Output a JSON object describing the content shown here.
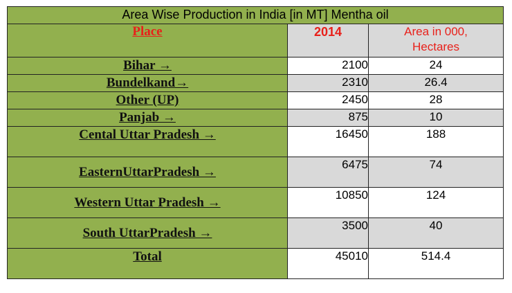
{
  "table": {
    "title": "Area Wise Production in India [in MT] Mentha oil",
    "headers": {
      "place": "Place",
      "year": "2014",
      "area_line1": "Area in 000,",
      "area_line2": "Hectares"
    },
    "rows": [
      {
        "place": "Bihar →",
        "production": "2100",
        "area": "24"
      },
      {
        "place": "Bundelkand→",
        "production": "2310",
        "area": "26.4"
      },
      {
        "place": "Other (UP)",
        "production": "2450",
        "area": "28"
      },
      {
        "place": "Panjab →",
        "production": "875",
        "area": "10"
      },
      {
        "place": "Cental Uttar Pradesh →",
        "production": "16450",
        "area": "188"
      },
      {
        "place": "EasternUttarPradesh →",
        "production": "6475",
        "area": "74"
      },
      {
        "place": " Western Uttar Pradesh →",
        "production": "10850",
        "area": "124"
      },
      {
        "place": "South UttarPradesh →",
        "production": "3500",
        "area": "40"
      },
      {
        "place": "Total",
        "production": "45010",
        "area": "514.4"
      }
    ]
  },
  "colors": {
    "place_column": "#92b04e",
    "shaded_row": "#d9d9d9",
    "header_text": "#e8201a",
    "border": "#222222"
  }
}
